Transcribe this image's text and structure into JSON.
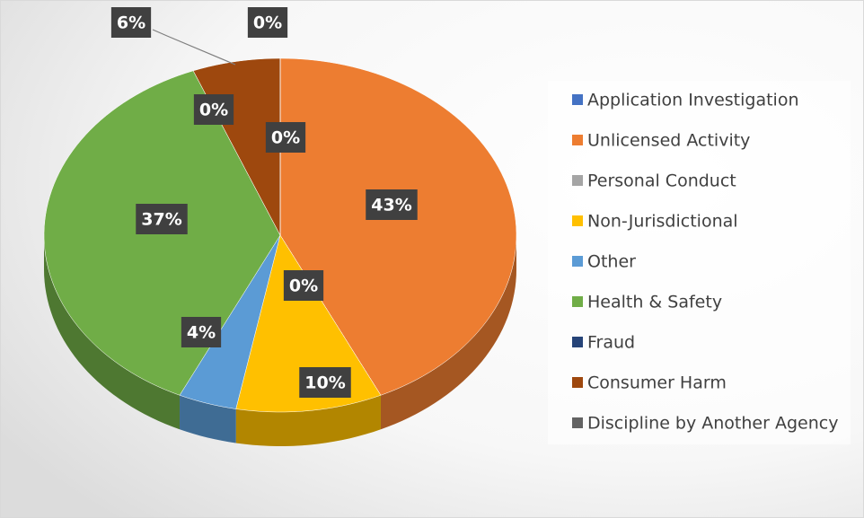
{
  "chart_data": {
    "type": "pie",
    "categories": [
      "Application Investigation",
      "Unlicensed Activity",
      "Personal Conduct",
      "Non-Jurisdictional",
      "Other",
      "Health & Safety",
      "Fraud",
      "Consumer Harm",
      "Discipline by Another Agency"
    ],
    "values": [
      0,
      43,
      0,
      10,
      4,
      37,
      0,
      6,
      0
    ],
    "value_labels": [
      "0%",
      "43%",
      "0%",
      "10%",
      "4%",
      "37%",
      "0%",
      "6%",
      "0%"
    ],
    "colors": [
      "#4472c4",
      "#ed7d31",
      "#a5a5a5",
      "#ffc000",
      "#5b9bd5",
      "#70ad47",
      "#264478",
      "#9e480e",
      "#636363"
    ],
    "legend": "right"
  }
}
